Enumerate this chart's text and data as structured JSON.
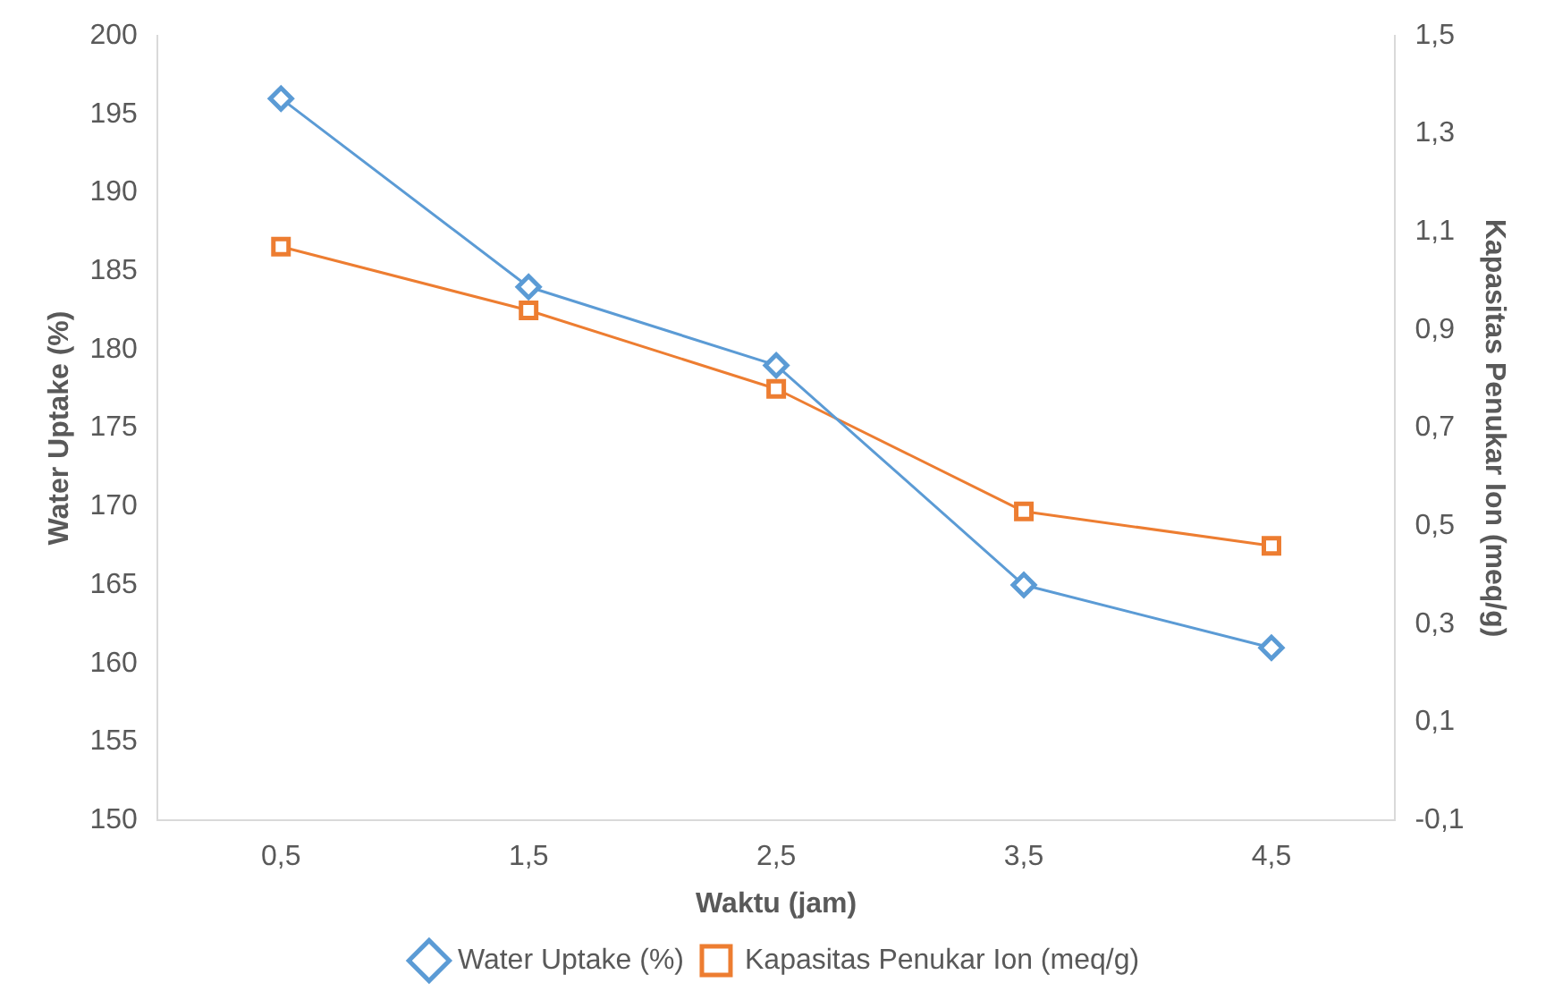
{
  "chart_data": {
    "type": "line",
    "xlabel": "Waktu (jam)",
    "ylabel": "Water Uptake (%)",
    "y2label": "Kapasitas Penukar Ion (meq/g)",
    "categories": [
      "0,5",
      "1,5",
      "2,5",
      "3,5",
      "4,5"
    ],
    "series": [
      {
        "name": "Water Uptake (%)",
        "color": "#5b9bd5",
        "marker": "diamond",
        "values": [
          196,
          184,
          179,
          165,
          161
        ]
      },
      {
        "name": "Kapasitas Penukar Ion (meq/g)",
        "color": "#ed7d31",
        "marker": "square",
        "axis": "y2",
        "values": [
          1.07,
          0.94,
          0.78,
          0.53,
          0.46
        ]
      }
    ],
    "ylim": [
      150,
      200
    ],
    "yticks": [
      150,
      155,
      160,
      165,
      170,
      175,
      180,
      185,
      190,
      195,
      200
    ],
    "y2lim": [
      -0.1,
      1.5
    ],
    "y2ticks": [
      {
        "value": -0.1,
        "label": "-0,1"
      },
      {
        "value": 0.1,
        "label": "0,1"
      },
      {
        "value": 0.3,
        "label": "0,3"
      },
      {
        "value": 0.5,
        "label": "0,5"
      },
      {
        "value": 0.7,
        "label": "0,7"
      },
      {
        "value": 0.9,
        "label": "0,9"
      },
      {
        "value": 1.1,
        "label": "1,1"
      },
      {
        "value": 1.3,
        "label": "1,3"
      },
      {
        "value": 1.5,
        "label": "1,5"
      }
    ],
    "grid": false,
    "legend": "bottom"
  }
}
